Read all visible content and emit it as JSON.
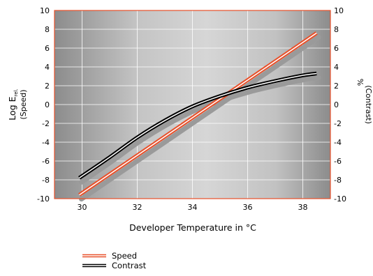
{
  "chart_data": {
    "type": "line",
    "title": "",
    "xlabel": "Developer Temperature in °C",
    "ylabel_left": {
      "main": "Log E",
      "sub": "rel.",
      "paren": "(Speed)"
    },
    "ylabel_right": {
      "main": "%",
      "paren": "(Contrast)"
    },
    "xlim": [
      29,
      39
    ],
    "ylim_left": [
      -10,
      10
    ],
    "ylim_right": [
      -10,
      10
    ],
    "x_ticks": [
      30,
      32,
      34,
      36,
      38
    ],
    "x_tick_labels": [
      "30",
      "32",
      "34",
      "36",
      "38"
    ],
    "y_ticks": [
      10,
      8,
      6,
      4,
      2,
      0,
      -2,
      -4,
      -6,
      -8,
      -10
    ],
    "y_tick_labels_left": [
      "10",
      "8",
      "6",
      "4",
      "2",
      "0",
      "-2",
      "-4",
      "-6",
      "-8",
      "-10"
    ],
    "y_tick_labels_right": [
      "10",
      "8",
      "6",
      "4",
      "2",
      "0",
      "-2",
      "-4",
      "-6",
      "-8",
      "-10"
    ],
    "grid": true,
    "legend_position": "bottom-center",
    "series": [
      {
        "name": "Speed",
        "axis": "left",
        "color": "#e8502a",
        "x": [
          29.9,
          38.5
        ],
        "y": [
          -9.6,
          7.6
        ]
      },
      {
        "name": "Contrast",
        "axis": "right",
        "color": "#000000",
        "x": [
          29.9,
          31,
          32,
          33,
          34,
          35,
          36,
          37,
          38,
          38.5
        ],
        "y": [
          -7.8,
          -5.6,
          -3.5,
          -1.7,
          -0.2,
          0.9,
          1.8,
          2.5,
          3.1,
          3.3
        ]
      }
    ]
  }
}
